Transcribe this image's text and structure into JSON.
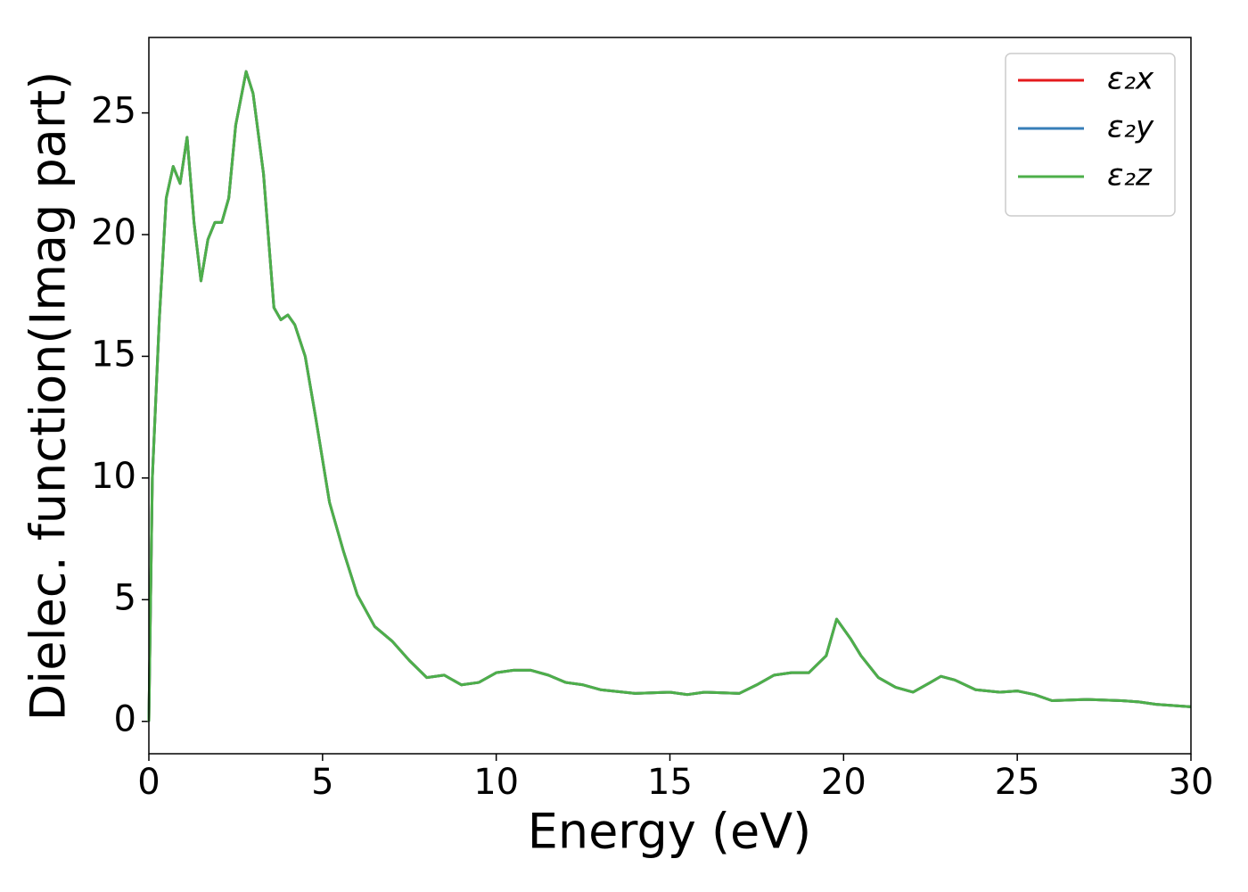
{
  "chart_data": {
    "type": "line",
    "xlabel": "Energy (eV)",
    "ylabel": "Dielec. function(Imag part)",
    "x": [
      0,
      0.1,
      0.3,
      0.5,
      0.7,
      0.9,
      1.1,
      1.3,
      1.5,
      1.7,
      1.9,
      2.1,
      2.3,
      2.5,
      2.8,
      3.0,
      3.3,
      3.6,
      3.8,
      4.0,
      4.2,
      4.5,
      4.8,
      5.2,
      5.6,
      6.0,
      6.5,
      7.0,
      7.5,
      8.0,
      8.5,
      9.0,
      9.5,
      10.0,
      10.5,
      11.0,
      11.5,
      12.0,
      12.5,
      13.0,
      14.0,
      15.0,
      15.5,
      16.0,
      17.0,
      17.5,
      18.0,
      18.5,
      19.0,
      19.5,
      19.8,
      20.2,
      20.5,
      21.0,
      21.5,
      22.0,
      22.5,
      22.8,
      23.2,
      23.8,
      24.5,
      25.0,
      25.5,
      26.0,
      27.0,
      28.0,
      28.5,
      29.0,
      30.0
    ],
    "series": [
      {
        "name": "ε₂x",
        "color": "#e41a1c",
        "values": [
          0,
          10,
          16.5,
          21.5,
          22.8,
          22.1,
          24.0,
          20.5,
          18.1,
          19.8,
          20.5,
          20.5,
          21.5,
          24.5,
          26.7,
          25.8,
          22.5,
          17.0,
          16.5,
          16.7,
          16.3,
          15.0,
          12.5,
          9.0,
          7.0,
          5.2,
          3.9,
          3.3,
          2.5,
          1.8,
          1.9,
          1.5,
          1.6,
          2.0,
          2.1,
          2.1,
          1.9,
          1.6,
          1.5,
          1.3,
          1.15,
          1.2,
          1.1,
          1.2,
          1.15,
          1.5,
          1.9,
          2.0,
          2.0,
          2.7,
          4.2,
          3.4,
          2.7,
          1.8,
          1.4,
          1.2,
          1.6,
          1.85,
          1.7,
          1.3,
          1.2,
          1.25,
          1.1,
          0.85,
          0.9,
          0.85,
          0.8,
          0.7,
          0.6
        ]
      },
      {
        "name": "ε₂y",
        "color": "#377eb8",
        "values": [
          0,
          10,
          16.5,
          21.5,
          22.8,
          22.1,
          24.0,
          20.5,
          18.1,
          19.8,
          20.5,
          20.5,
          21.5,
          24.5,
          26.7,
          25.8,
          22.5,
          17.0,
          16.5,
          16.7,
          16.3,
          15.0,
          12.5,
          9.0,
          7.0,
          5.2,
          3.9,
          3.3,
          2.5,
          1.8,
          1.9,
          1.5,
          1.6,
          2.0,
          2.1,
          2.1,
          1.9,
          1.6,
          1.5,
          1.3,
          1.15,
          1.2,
          1.1,
          1.2,
          1.15,
          1.5,
          1.9,
          2.0,
          2.0,
          2.7,
          4.2,
          3.4,
          2.7,
          1.8,
          1.4,
          1.2,
          1.6,
          1.85,
          1.7,
          1.3,
          1.2,
          1.25,
          1.1,
          0.85,
          0.9,
          0.85,
          0.8,
          0.7,
          0.6
        ]
      },
      {
        "name": "ε₂z",
        "color": "#4daf4a",
        "values": [
          0,
          10,
          16.5,
          21.5,
          22.8,
          22.1,
          24.0,
          20.5,
          18.1,
          19.8,
          20.5,
          20.5,
          21.5,
          24.5,
          26.7,
          25.8,
          22.5,
          17.0,
          16.5,
          16.7,
          16.3,
          15.0,
          12.5,
          9.0,
          7.0,
          5.2,
          3.9,
          3.3,
          2.5,
          1.8,
          1.9,
          1.5,
          1.6,
          2.0,
          2.1,
          2.1,
          1.9,
          1.6,
          1.5,
          1.3,
          1.15,
          1.2,
          1.1,
          1.2,
          1.15,
          1.5,
          1.9,
          2.0,
          2.0,
          2.7,
          4.2,
          3.4,
          2.7,
          1.8,
          1.4,
          1.2,
          1.6,
          1.85,
          1.7,
          1.3,
          1.2,
          1.25,
          1.1,
          0.85,
          0.9,
          0.85,
          0.8,
          0.7,
          0.6
        ]
      }
    ],
    "xlim": [
      0,
      30
    ],
    "xticks": [
      0,
      5,
      10,
      15,
      20,
      25,
      30
    ],
    "ylim": [
      -1.33,
      28.1
    ],
    "yticks": [
      0,
      5,
      10,
      15,
      20,
      25
    ],
    "legend": "upper right"
  }
}
